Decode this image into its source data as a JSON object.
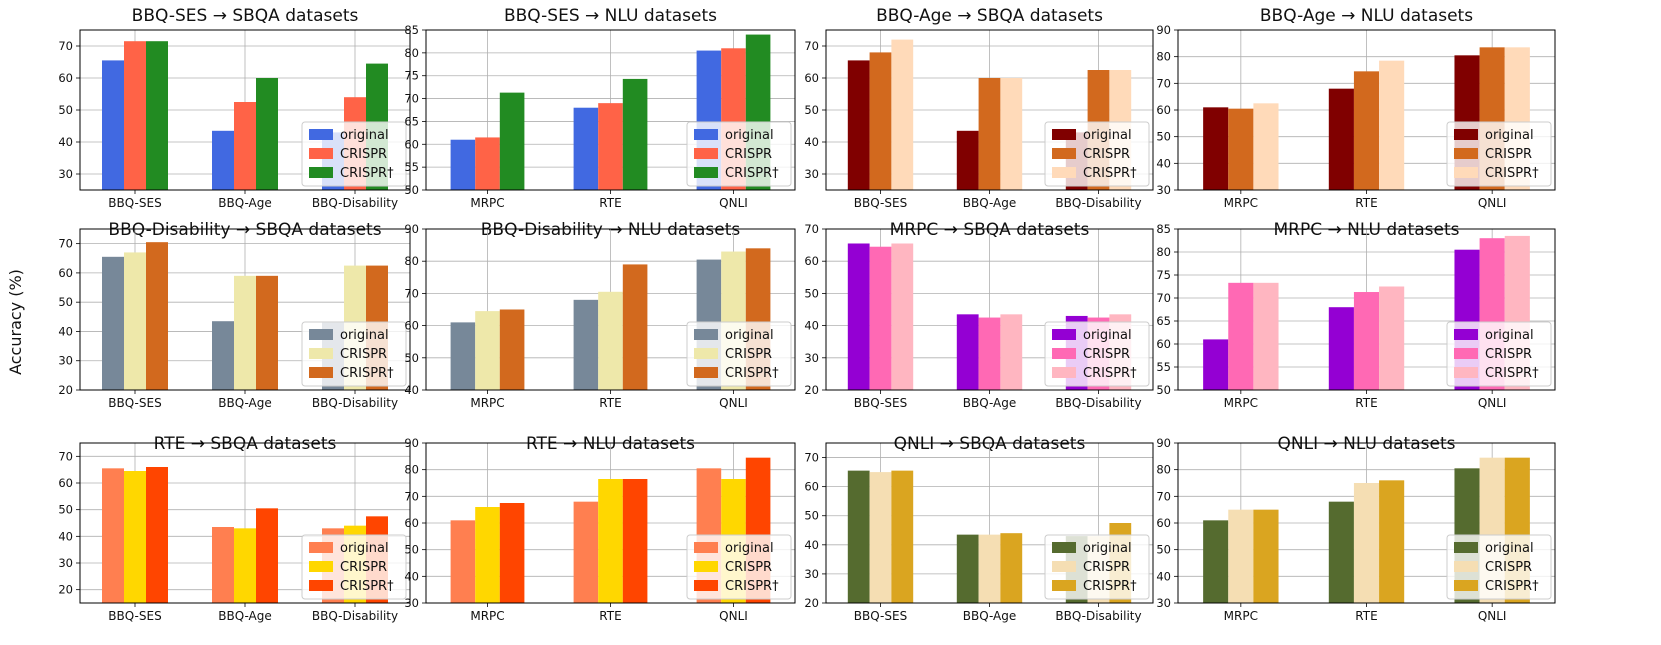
{
  "ylabel": "Accuracy (%)",
  "legend_labels": [
    "original",
    "CRISPR",
    "CRISPR†"
  ],
  "chart_data": [
    {
      "type": "bar",
      "title": "BBQ-SES → SBQA datasets",
      "categories": [
        "BBQ-SES",
        "BBQ-Age",
        "BBQ-Disability"
      ],
      "ylim": [
        25,
        75
      ],
      "yticks": [
        30,
        40,
        50,
        60,
        70
      ],
      "colors": [
        "#4169E1",
        "#FF6347",
        "#228B22"
      ],
      "grid": true,
      "legend": "lower right",
      "series": [
        {
          "name": "original",
          "values": [
            65.5,
            43.5,
            43.0
          ]
        },
        {
          "name": "CRISPR",
          "values": [
            71.5,
            52.5,
            54.0
          ]
        },
        {
          "name": "CRISPR†",
          "values": [
            71.5,
            60.0,
            64.5
          ]
        }
      ]
    },
    {
      "type": "bar",
      "title": "BBQ-SES → NLU datasets",
      "categories": [
        "MRPC",
        "RTE",
        "QNLI"
      ],
      "ylim": [
        50,
        85
      ],
      "yticks": [
        50,
        55,
        60,
        65,
        70,
        75,
        80,
        85
      ],
      "colors": [
        "#4169E1",
        "#FF6347",
        "#228B22"
      ],
      "grid": true,
      "legend": "lower right",
      "series": [
        {
          "name": "original",
          "values": [
            61.0,
            68.0,
            80.5
          ]
        },
        {
          "name": "CRISPR",
          "values": [
            61.5,
            69.0,
            81.0
          ]
        },
        {
          "name": "CRISPR†",
          "values": [
            71.3,
            74.3,
            84.0
          ]
        }
      ]
    },
    {
      "type": "bar",
      "title": "BBQ-Age → SBQA datasets",
      "categories": [
        "BBQ-SES",
        "BBQ-Age",
        "BBQ-Disability"
      ],
      "ylim": [
        25,
        75
      ],
      "yticks": [
        30,
        40,
        50,
        60,
        70
      ],
      "colors": [
        "#800000",
        "#D2691E",
        "#FFDAB9"
      ],
      "grid": true,
      "legend": "lower right",
      "series": [
        {
          "name": "original",
          "values": [
            65.5,
            43.5,
            43.0
          ]
        },
        {
          "name": "CRISPR",
          "values": [
            68.0,
            60.0,
            62.5
          ]
        },
        {
          "name": "CRISPR†",
          "values": [
            72.0,
            60.0,
            62.5
          ]
        }
      ]
    },
    {
      "type": "bar",
      "title": "BBQ-Age → NLU datasets",
      "categories": [
        "MRPC",
        "RTE",
        "QNLI"
      ],
      "ylim": [
        30,
        90
      ],
      "yticks": [
        30,
        40,
        50,
        60,
        70,
        80,
        90
      ],
      "colors": [
        "#800000",
        "#D2691E",
        "#FFDAB9"
      ],
      "grid": true,
      "legend": "lower right",
      "series": [
        {
          "name": "original",
          "values": [
            61.0,
            68.0,
            80.5
          ]
        },
        {
          "name": "CRISPR",
          "values": [
            60.5,
            74.5,
            83.5
          ]
        },
        {
          "name": "CRISPR†",
          "values": [
            62.5,
            78.5,
            83.5
          ]
        }
      ]
    },
    {
      "type": "bar",
      "title": "BBQ-Disability → SBQA datasets",
      "categories": [
        "BBQ-SES",
        "BBQ-Age",
        "BBQ-Disability"
      ],
      "ylim": [
        20,
        75
      ],
      "yticks": [
        20,
        30,
        40,
        50,
        60,
        70
      ],
      "colors": [
        "#778899",
        "#EEE8AA",
        "#D2691E"
      ],
      "grid": true,
      "legend": "lower right",
      "series": [
        {
          "name": "original",
          "values": [
            65.5,
            43.5,
            43.0
          ]
        },
        {
          "name": "CRISPR",
          "values": [
            67.0,
            59.0,
            62.5
          ]
        },
        {
          "name": "CRISPR†",
          "values": [
            70.5,
            59.0,
            62.5
          ]
        }
      ]
    },
    {
      "type": "bar",
      "title": "BBQ-Disability → NLU datasets",
      "categories": [
        "MRPC",
        "RTE",
        "QNLI"
      ],
      "ylim": [
        40,
        90
      ],
      "yticks": [
        40,
        50,
        60,
        70,
        80,
        90
      ],
      "colors": [
        "#778899",
        "#EEE8AA",
        "#D2691E"
      ],
      "grid": true,
      "legend": "lower right",
      "series": [
        {
          "name": "original",
          "values": [
            61.0,
            68.0,
            80.5
          ]
        },
        {
          "name": "CRISPR",
          "values": [
            64.5,
            70.5,
            83.0
          ]
        },
        {
          "name": "CRISPR†",
          "values": [
            65.0,
            79.0,
            84.0
          ]
        }
      ]
    },
    {
      "type": "bar",
      "title": "MRPC → SBQA datasets",
      "categories": [
        "BBQ-SES",
        "BBQ-Age",
        "BBQ-Disability"
      ],
      "ylim": [
        20,
        70
      ],
      "yticks": [
        20,
        30,
        40,
        50,
        60,
        70
      ],
      "colors": [
        "#9400D3",
        "#FF69B4",
        "#FFB6C1"
      ],
      "grid": true,
      "legend": "lower right",
      "series": [
        {
          "name": "original",
          "values": [
            65.5,
            43.5,
            43.0
          ]
        },
        {
          "name": "CRISPR",
          "values": [
            64.5,
            42.5,
            42.5
          ]
        },
        {
          "name": "CRISPR†",
          "values": [
            65.5,
            43.5,
            43.5
          ]
        }
      ]
    },
    {
      "type": "bar",
      "title": "MRPC → NLU datasets",
      "categories": [
        "MRPC",
        "RTE",
        "QNLI"
      ],
      "ylim": [
        50,
        85
      ],
      "yticks": [
        50,
        55,
        60,
        65,
        70,
        75,
        80,
        85
      ],
      "colors": [
        "#9400D3",
        "#FF69B4",
        "#FFB6C1"
      ],
      "grid": true,
      "legend": "lower right",
      "series": [
        {
          "name": "original",
          "values": [
            61.0,
            68.0,
            80.5
          ]
        },
        {
          "name": "CRISPR",
          "values": [
            73.3,
            71.3,
            83.0
          ]
        },
        {
          "name": "CRISPR†",
          "values": [
            73.3,
            72.5,
            83.5
          ]
        }
      ]
    },
    {
      "type": "bar",
      "title": "RTE → SBQA datasets",
      "categories": [
        "BBQ-SES",
        "BBQ-Age",
        "BBQ-Disability"
      ],
      "ylim": [
        15,
        75
      ],
      "yticks": [
        20,
        30,
        40,
        50,
        60,
        70
      ],
      "colors": [
        "#FF7F50",
        "#FFD700",
        "#FF4500"
      ],
      "grid": true,
      "legend": "lower right",
      "series": [
        {
          "name": "original",
          "values": [
            65.5,
            43.5,
            43.0
          ]
        },
        {
          "name": "CRISPR",
          "values": [
            64.5,
            43.0,
            44.0
          ]
        },
        {
          "name": "CRISPR†",
          "values": [
            66.0,
            50.5,
            47.5
          ]
        }
      ]
    },
    {
      "type": "bar",
      "title": "RTE → NLU datasets",
      "categories": [
        "MRPC",
        "RTE",
        "QNLI"
      ],
      "ylim": [
        30,
        90
      ],
      "yticks": [
        30,
        40,
        50,
        60,
        70,
        80,
        90
      ],
      "colors": [
        "#FF7F50",
        "#FFD700",
        "#FF4500"
      ],
      "grid": true,
      "legend": "lower right",
      "series": [
        {
          "name": "original",
          "values": [
            61.0,
            68.0,
            80.5
          ]
        },
        {
          "name": "CRISPR",
          "values": [
            66.0,
            76.5,
            76.5
          ]
        },
        {
          "name": "CRISPR†",
          "values": [
            67.5,
            76.5,
            84.5
          ]
        }
      ]
    },
    {
      "type": "bar",
      "title": "QNLI → SBQA datasets",
      "categories": [
        "BBQ-SES",
        "BBQ-Age",
        "BBQ-Disability"
      ],
      "ylim": [
        20,
        75
      ],
      "yticks": [
        20,
        30,
        40,
        50,
        60,
        70
      ],
      "colors": [
        "#556B2F",
        "#F5DEB3",
        "#DAA520"
      ],
      "grid": true,
      "legend": "lower right",
      "series": [
        {
          "name": "original",
          "values": [
            65.5,
            43.5,
            43.0
          ]
        },
        {
          "name": "CRISPR",
          "values": [
            65.0,
            43.5,
            43.0
          ]
        },
        {
          "name": "CRISPR†",
          "values": [
            65.5,
            44.0,
            47.5
          ]
        }
      ]
    },
    {
      "type": "bar",
      "title": "QNLI → NLU datasets",
      "categories": [
        "MRPC",
        "RTE",
        "QNLI"
      ],
      "ylim": [
        30,
        90
      ],
      "yticks": [
        30,
        40,
        50,
        60,
        70,
        80,
        90
      ],
      "colors": [
        "#556B2F",
        "#F5DEB3",
        "#DAA520"
      ],
      "grid": true,
      "legend": "lower right",
      "series": [
        {
          "name": "original",
          "values": [
            61.0,
            68.0,
            80.5
          ]
        },
        {
          "name": "CRISPR",
          "values": [
            65.0,
            75.0,
            84.5
          ]
        },
        {
          "name": "CRISPR†",
          "values": [
            65.0,
            76.0,
            84.5
          ]
        }
      ]
    }
  ]
}
